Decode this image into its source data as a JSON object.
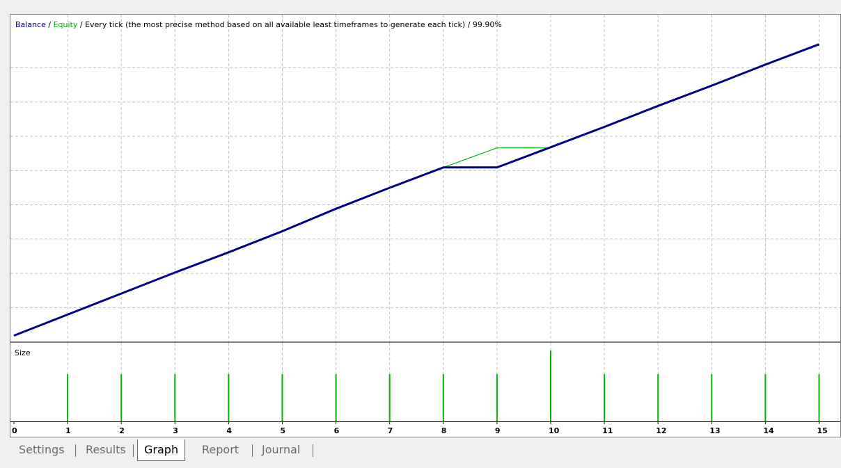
{
  "title": {
    "balance": "Balance",
    "sep1": " / ",
    "equity": "Equity",
    "rest": " / Every tick (the most precise method based on all available least timeframes to generate each tick) / 99.90%"
  },
  "size_label": "Size",
  "tabs": [
    {
      "label": "Settings",
      "active": false
    },
    {
      "label": "Results",
      "active": false
    },
    {
      "label": "Graph",
      "active": true
    },
    {
      "label": "Report",
      "active": false
    },
    {
      "label": "Journal",
      "active": false
    }
  ],
  "colors": {
    "balance": "#00008b",
    "equity": "#00b400",
    "size_bars": "#00b400",
    "grid": "#c0c0c0"
  },
  "chart_data": {
    "type": "line",
    "x": [
      0,
      1,
      2,
      3,
      4,
      5,
      6,
      7,
      8,
      9,
      10,
      11,
      12,
      13,
      14,
      15
    ],
    "x_tick_labels": [
      "0",
      "1",
      "2",
      "3",
      "4",
      "5",
      "6",
      "7",
      "8",
      "9",
      "10",
      "11",
      "12",
      "13",
      "14",
      "15"
    ],
    "series": [
      {
        "name": "Balance",
        "values": [
          0,
          29,
          58,
          87,
          115,
          144,
          175,
          204,
          232,
          232,
          260,
          288,
          317,
          345,
          374,
          402
        ]
      },
      {
        "name": "Equity",
        "values": [
          0,
          29,
          58,
          87,
          115,
          144,
          175,
          204,
          232,
          259,
          259,
          288,
          317,
          345,
          374,
          402
        ]
      }
    ],
    "y_range": [
      -10,
      443
    ],
    "size_panel": {
      "label": "Size",
      "values": [
        1,
        1,
        1,
        1,
        1,
        1,
        1,
        1,
        1,
        1.5,
        1,
        1,
        1,
        1,
        1
      ]
    },
    "grid": true
  }
}
